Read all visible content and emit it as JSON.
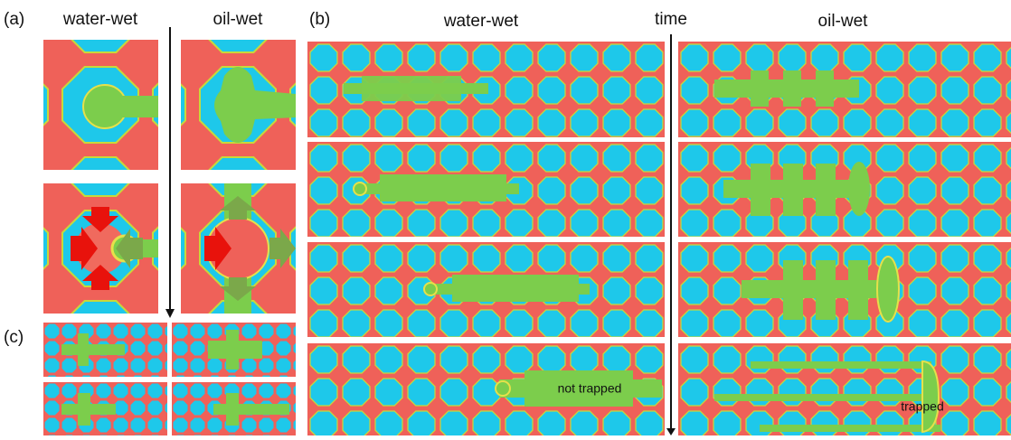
{
  "panel_a": {
    "label": "(a)",
    "water_wet": "water-wet",
    "oil_wet": "oil-wet"
  },
  "panel_b": {
    "label": "(b)",
    "water_wet": "water-wet",
    "time": "time",
    "oil_wet": "oil-wet",
    "not_trapped": "not trapped",
    "trapped": "trapped"
  },
  "panel_c": {
    "label": "(c)"
  }
}
